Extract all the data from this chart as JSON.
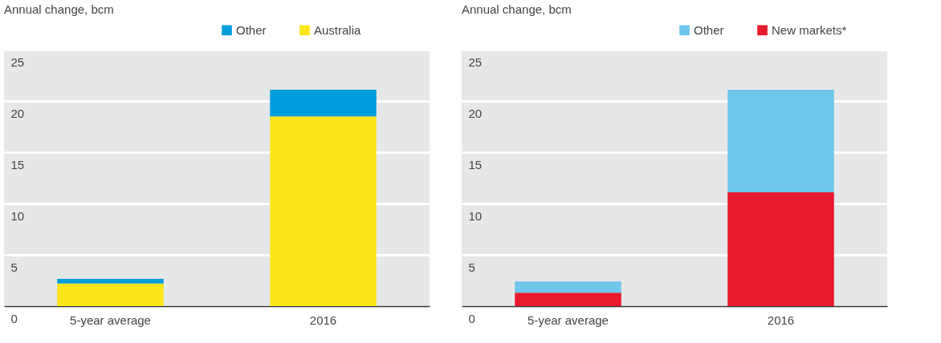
{
  "chart_data": [
    {
      "type": "bar",
      "ylabel": "Annual change, bcm",
      "categories": [
        "5-year average",
        "2016"
      ],
      "stacked": true,
      "ylim": [
        0,
        25
      ],
      "yticks": [
        0,
        5,
        10,
        15,
        20,
        25
      ],
      "grid": "y",
      "legend": "top right",
      "series": [
        {
          "name": "Australia",
          "color": "#fce51b",
          "values": [
            2.2,
            18.5
          ]
        },
        {
          "name": "Other",
          "color": "#009ddc",
          "values": [
            0.45,
            2.6
          ]
        }
      ]
    },
    {
      "type": "bar",
      "ylabel": "Annual change, bcm",
      "categories": [
        "5-year average",
        "2016"
      ],
      "stacked": true,
      "ylim": [
        0,
        25
      ],
      "yticks": [
        0,
        5,
        10,
        15,
        20,
        25
      ],
      "grid": "y",
      "legend": "top right",
      "series": [
        {
          "name": "New markets*",
          "color": "#e8192c",
          "values": [
            1.3,
            11.1
          ]
        },
        {
          "name": "Other",
          "color": "#6ec6ec",
          "values": [
            1.1,
            10.0
          ]
        }
      ]
    }
  ]
}
